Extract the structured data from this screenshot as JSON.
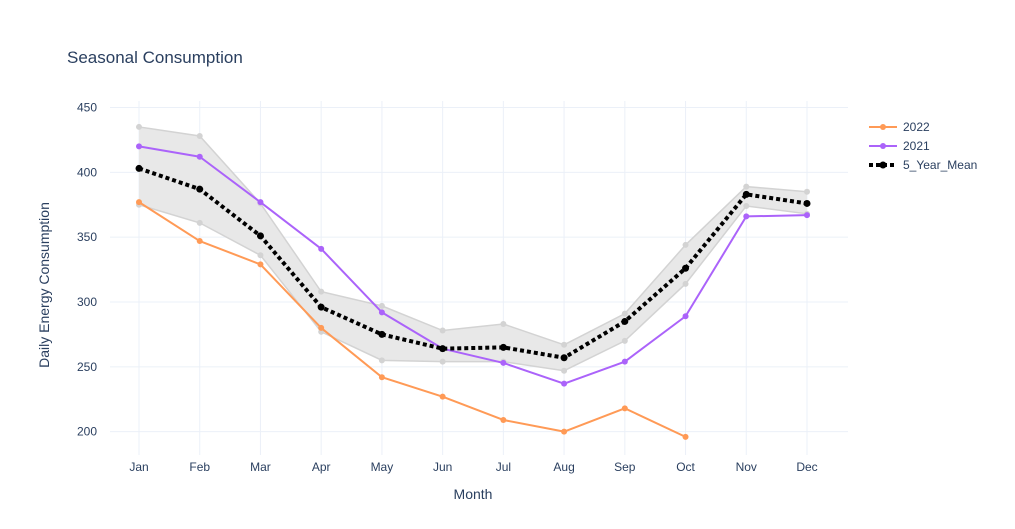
{
  "chart_data": {
    "type": "line",
    "title": "Seasonal Consumption",
    "xlabel": "Month",
    "ylabel": "Daily Energy Consumption",
    "categories": [
      "Jan",
      "Feb",
      "Mar",
      "Apr",
      "May",
      "Jun",
      "Jul",
      "Aug",
      "Sep",
      "Oct",
      "Nov",
      "Dec"
    ],
    "ylim": [
      182,
      455
    ],
    "yticks": [
      200,
      250,
      300,
      350,
      400,
      450
    ],
    "grid": true,
    "legend_position": "top-right",
    "band": {
      "upper": [
        435,
        428,
        376,
        308,
        297,
        278,
        283,
        267,
        291,
        344,
        389,
        385
      ],
      "lower": [
        375,
        361,
        336,
        277,
        255,
        254,
        254,
        247,
        270,
        314,
        374,
        368
      ],
      "fill_color": "#e8e8e8",
      "line_color": "#d3d3d3"
    },
    "series": [
      {
        "name": "2022",
        "color": "#ff9a56",
        "dash": "solid",
        "values": [
          377,
          347,
          329,
          280,
          242,
          227,
          209,
          200,
          218,
          196,
          null,
          null
        ]
      },
      {
        "name": "2021",
        "color": "#ab63fa",
        "dash": "solid",
        "values": [
          420,
          412,
          377,
          341,
          292,
          264,
          253,
          237,
          254,
          289,
          366,
          367
        ]
      },
      {
        "name": "5_Year_Mean",
        "color": "#000000",
        "dash": "dot",
        "values": [
          403,
          387,
          351,
          296,
          275,
          264,
          265,
          257,
          285,
          326,
          383,
          376
        ]
      }
    ]
  }
}
